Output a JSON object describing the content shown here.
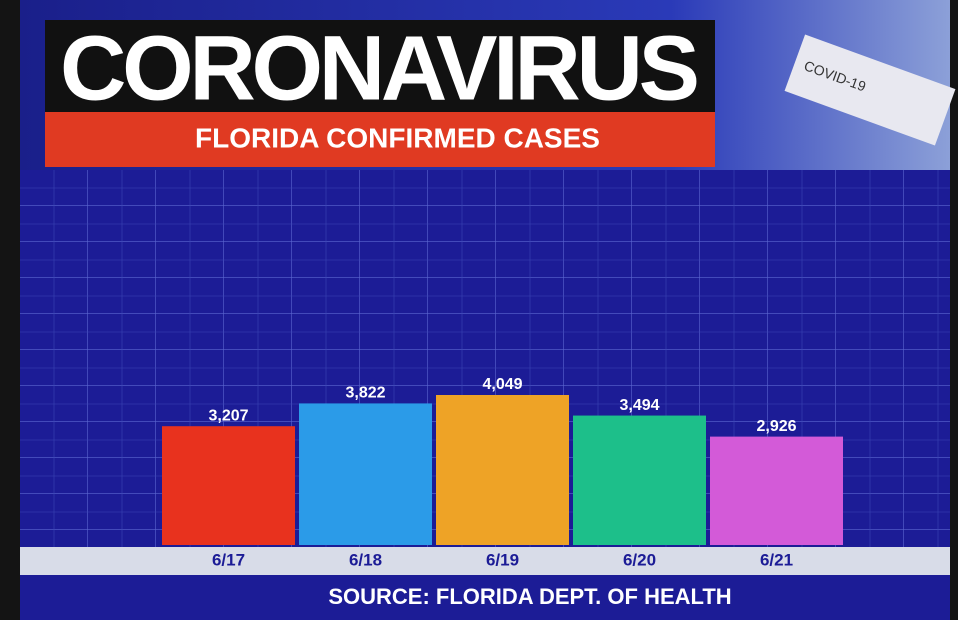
{
  "chart_data": {
    "type": "bar",
    "title": "CORONAVIRUS",
    "subtitle": "FLORIDA CONFIRMED CASES",
    "badge": "COVID-19",
    "source": "SOURCE: FLORIDA DEPT. OF HEALTH",
    "categories": [
      "6/17",
      "6/18",
      "6/19",
      "6/20",
      "6/21"
    ],
    "values": [
      3207,
      3822,
      4049,
      3494,
      2926
    ],
    "value_labels": [
      "3,207",
      "3,822",
      "4,049",
      "3,494",
      "2,926"
    ],
    "colors": [
      "#e8321e",
      "#2b9be8",
      "#eea326",
      "#1dbf8a",
      "#d35ad8"
    ]
  }
}
